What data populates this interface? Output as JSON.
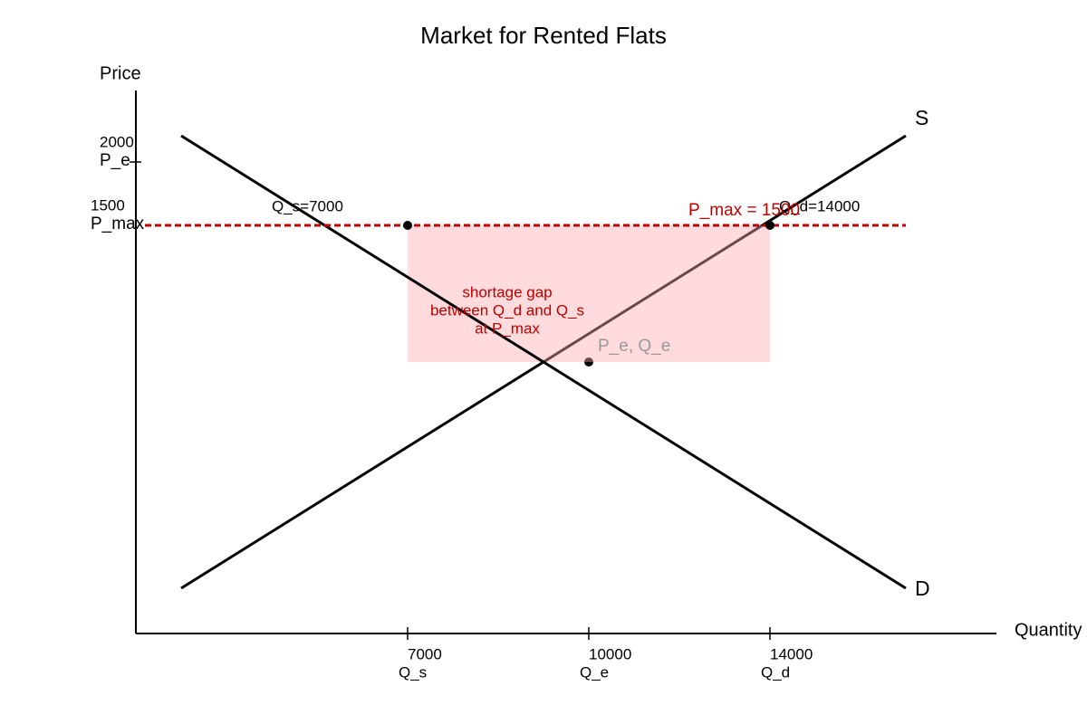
{
  "title": "Market for Rented Flats",
  "axes": {
    "y_label": "Price",
    "x_label": "Quantity"
  },
  "y_ticks": [
    {
      "value": "2000",
      "name": "P_e"
    },
    {
      "value": "1500",
      "name": "P_max"
    }
  ],
  "x_ticks": [
    {
      "value": "7000",
      "name": "Q_s"
    },
    {
      "value": "10000",
      "name": "Q_e"
    },
    {
      "value": "14000",
      "name": "Q_d"
    }
  ],
  "curves": {
    "supply": "S",
    "demand": "D"
  },
  "annotations": {
    "qs_point": "Q_s=7000",
    "qd_point": "Q_d=14000",
    "price_ceiling": "P_max = 1500",
    "shortage": [
      "shortage gap",
      "between Q_d and Q_s",
      "at P_max"
    ],
    "equilibrium": "P_e, Q_e"
  }
}
